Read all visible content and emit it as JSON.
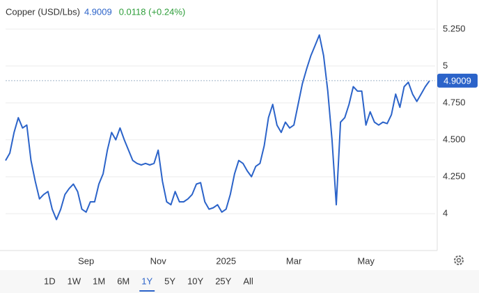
{
  "chart_data": {
    "type": "line",
    "title": "Copper (USD/Lbs)",
    "price": 4.9009,
    "change": "0.0118 (+0.24%)",
    "color": "#2b63c9",
    "ylim": [
      3.75,
      5.4
    ],
    "yticks": [
      {
        "value": 5.25,
        "label": "5.250"
      },
      5,
      {
        "value": 4.75,
        "label": "4.750"
      },
      {
        "value": 4.5,
        "label": "4.500"
      },
      {
        "value": 4.25,
        "label": "4.250"
      },
      4
    ],
    "grid": true,
    "categories": [
      null,
      null,
      null,
      null,
      null,
      null,
      null,
      null,
      null,
      null,
      null,
      null,
      null,
      null,
      null,
      null,
      null,
      null,
      null,
      "Sep",
      null,
      null,
      null,
      null,
      null,
      null,
      null,
      null,
      null,
      null,
      null,
      null,
      null,
      null,
      null,
      null,
      "Nov",
      null,
      null,
      null,
      null,
      null,
      null,
      null,
      null,
      null,
      null,
      null,
      null,
      null,
      null,
      null,
      "2025",
      null,
      null,
      null,
      null,
      null,
      null,
      null,
      null,
      null,
      null,
      null,
      null,
      null,
      null,
      null,
      "Mar",
      null,
      null,
      null,
      null,
      null,
      null,
      null,
      null,
      null,
      null,
      null,
      null,
      null,
      null,
      null,
      null,
      "May",
      null,
      null,
      null,
      null,
      null,
      null,
      null,
      null,
      null,
      null,
      null,
      null,
      null,
      null,
      null
    ],
    "values": [
      4.36,
      4.41,
      4.55,
      4.65,
      4.58,
      4.6,
      4.36,
      4.22,
      4.1,
      4.13,
      4.15,
      4.03,
      3.96,
      4.03,
      4.13,
      4.17,
      4.2,
      4.15,
      4.03,
      4.01,
      4.08,
      4.08,
      4.2,
      4.27,
      4.43,
      4.55,
      4.5,
      4.58,
      4.5,
      4.43,
      4.36,
      4.34,
      4.33,
      4.34,
      4.33,
      4.34,
      4.43,
      4.22,
      4.08,
      4.06,
      4.15,
      4.08,
      4.08,
      4.1,
      4.13,
      4.2,
      4.21,
      4.08,
      4.03,
      4.04,
      4.06,
      4.01,
      4.03,
      4.13,
      4.27,
      4.36,
      4.34,
      4.29,
      4.25,
      4.32,
      4.34,
      4.46,
      4.65,
      4.74,
      4.6,
      4.55,
      4.62,
      4.58,
      4.6,
      4.74,
      4.88,
      4.98,
      5.07,
      5.14,
      5.21,
      5.07,
      4.83,
      4.5,
      4.06,
      4.62,
      4.65,
      4.74,
      4.86,
      4.83,
      4.83,
      4.6,
      4.69,
      4.62,
      4.6,
      4.62,
      4.61,
      4.67,
      4.81,
      4.72,
      4.86,
      4.89,
      4.81,
      4.76,
      4.81,
      4.86,
      4.9009
    ]
  },
  "toolbar": {
    "ranges": [
      "1D",
      "1W",
      "1M",
      "6M",
      "1Y",
      "5Y",
      "10Y",
      "25Y",
      "All"
    ],
    "selected": "1Y"
  }
}
